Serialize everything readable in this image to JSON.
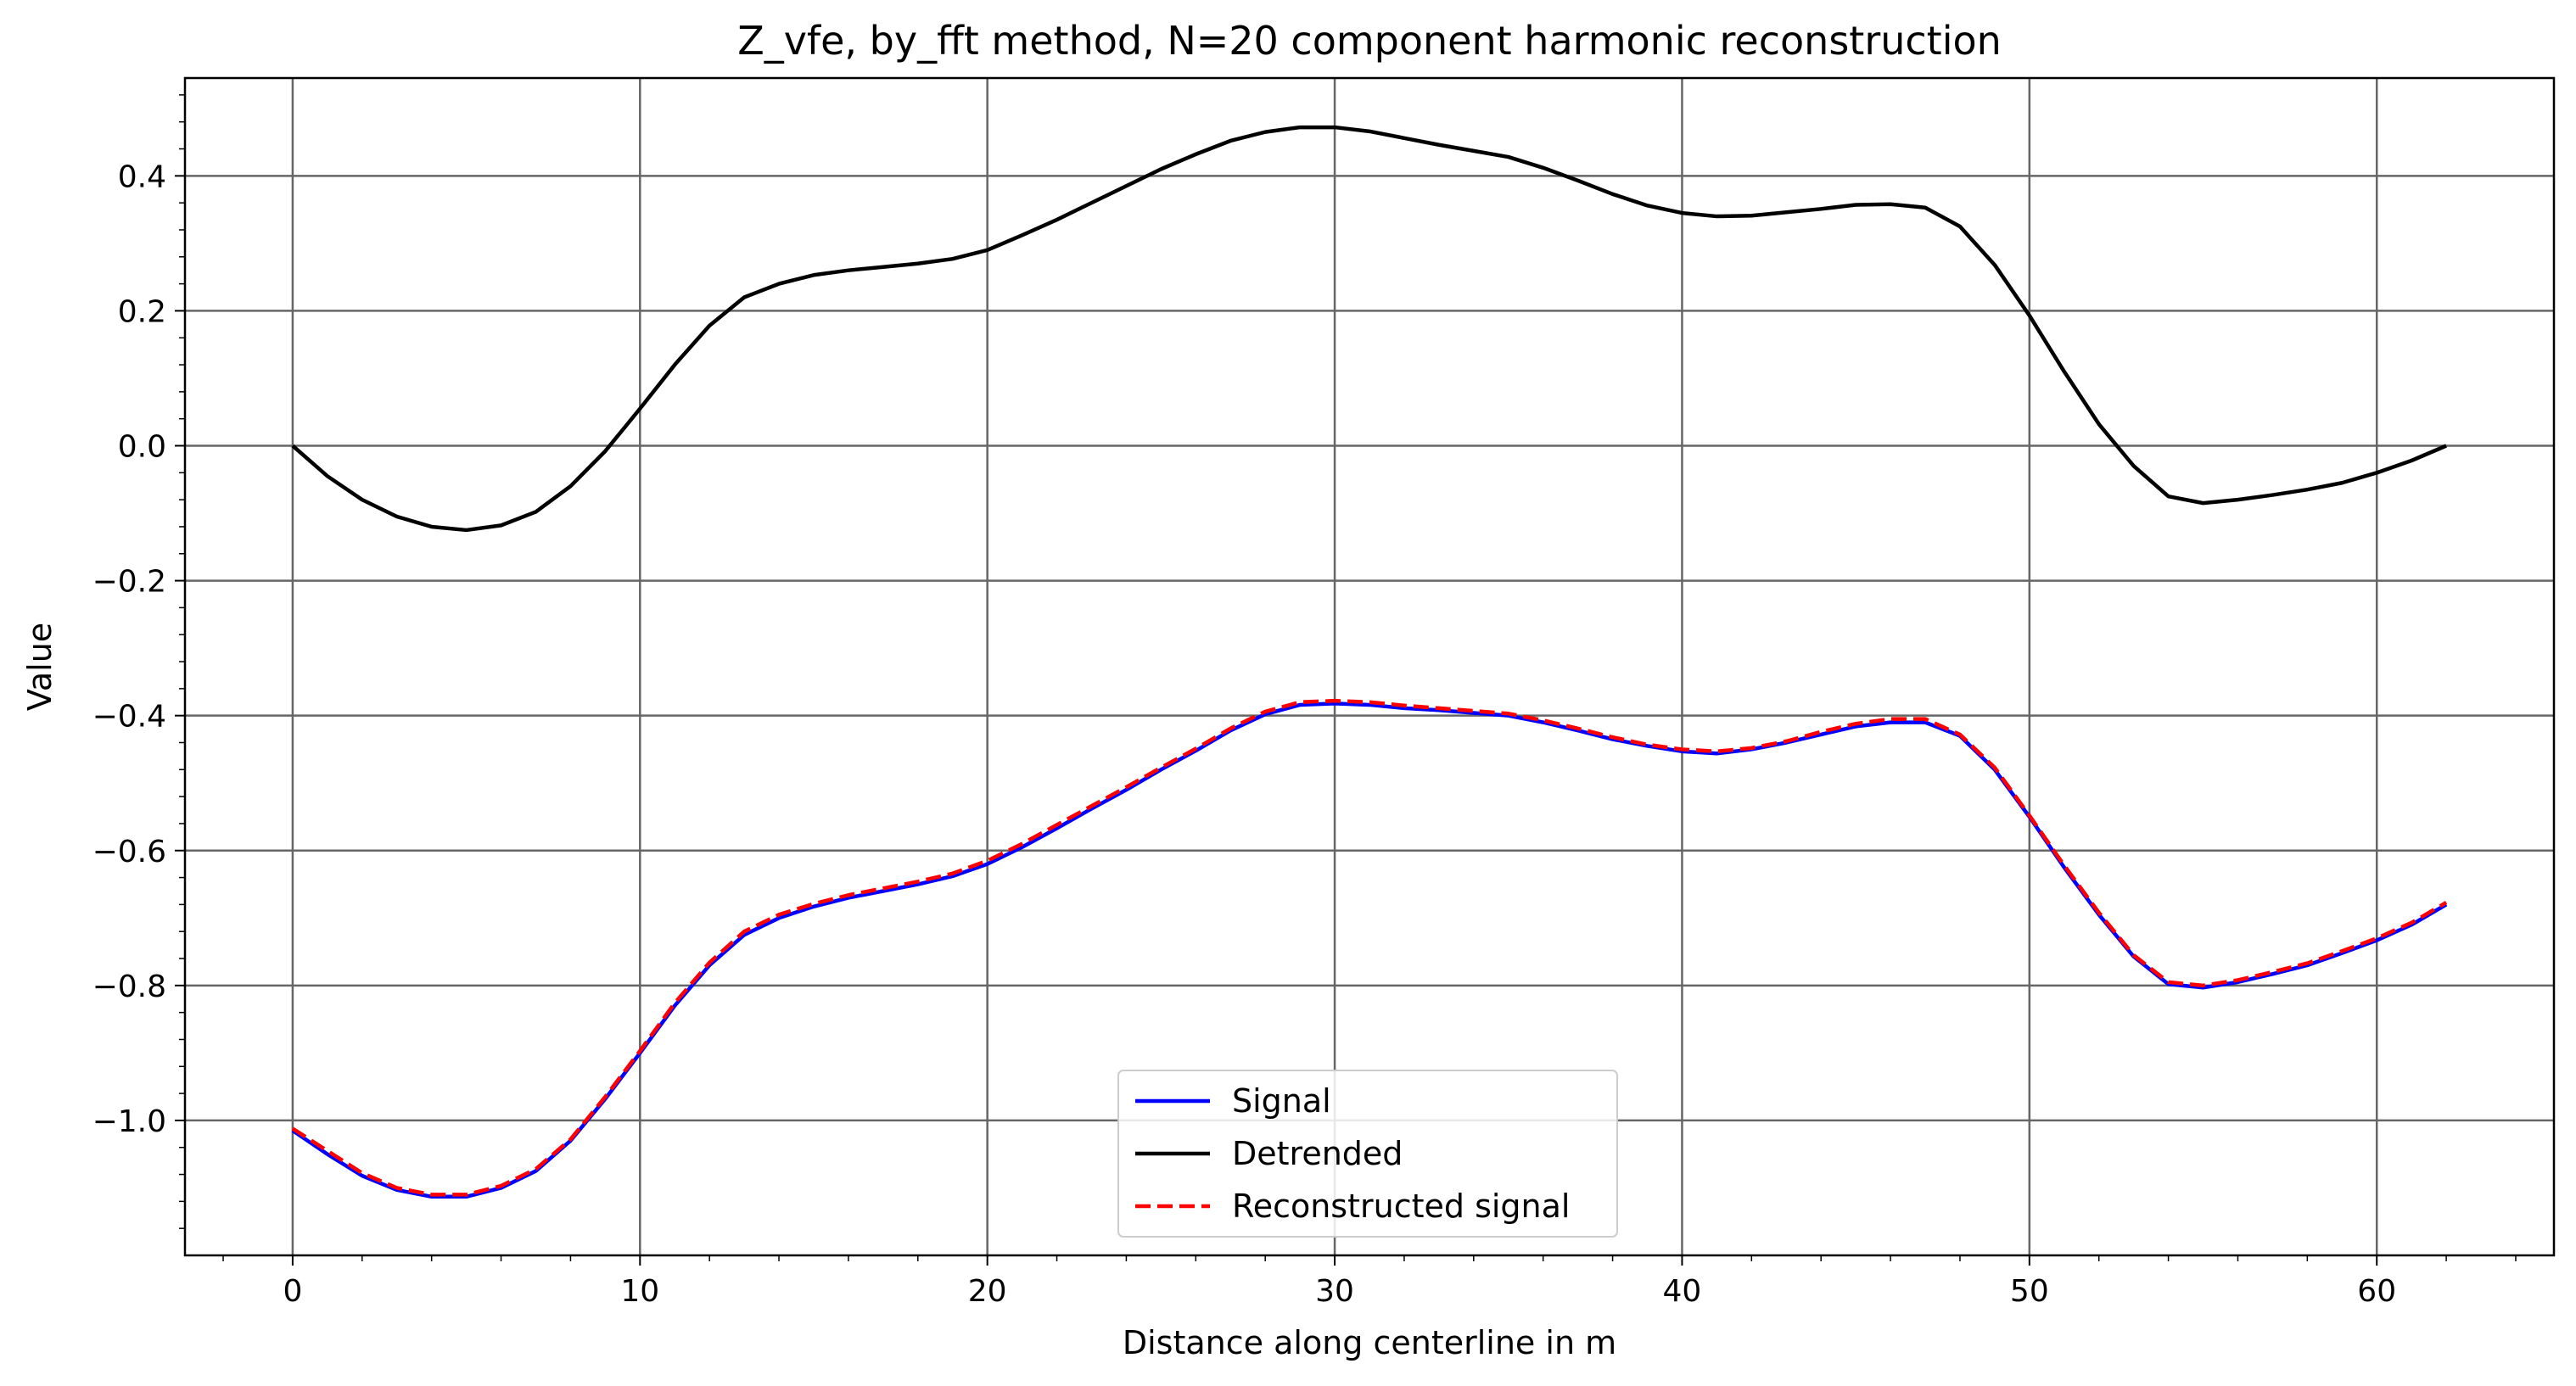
{
  "chart_data": {
    "type": "line",
    "title": "Z_vfe, by_fft method, N=20 component harmonic reconstruction",
    "xlabel": "Distance along centerline in m",
    "ylabel": "Value",
    "xlim": [
      -3.1,
      65.1
    ],
    "ylim": [
      -1.2,
      0.545
    ],
    "xticks": [
      0,
      10,
      20,
      30,
      40,
      50,
      60
    ],
    "xtick_labels": [
      "0",
      "10",
      "20",
      "30",
      "40",
      "50",
      "60"
    ],
    "yticks": [
      0.4,
      0.2,
      0.0,
      -0.2,
      -0.4,
      -0.6,
      -0.8,
      -1.0
    ],
    "ytick_labels": [
      "0.4",
      "0.2",
      "0.0",
      "−0.2",
      "−0.4",
      "−0.6",
      "−0.8",
      "−1.0"
    ],
    "grid": true,
    "legend_position": "lower-center",
    "x": [
      0,
      1,
      2,
      3,
      4,
      5,
      6,
      7,
      8,
      9,
      10,
      11,
      12,
      13,
      14,
      15,
      16,
      17,
      18,
      19,
      20,
      21,
      22,
      23,
      24,
      25,
      26,
      27,
      28,
      29,
      30,
      31,
      32,
      33,
      34,
      35,
      36,
      37,
      38,
      39,
      40,
      41,
      42,
      43,
      44,
      45,
      46,
      47,
      48,
      49,
      50,
      51,
      52,
      53,
      54,
      55,
      56,
      57,
      58,
      59,
      60,
      61,
      62
    ],
    "series": [
      {
        "name": "Signal",
        "color": "#0000ff",
        "style": "solid",
        "values": [
          -1.015,
          -1.05,
          -1.082,
          -1.103,
          -1.113,
          -1.113,
          -1.1,
          -1.075,
          -1.03,
          -0.968,
          -0.9,
          -0.83,
          -0.77,
          -0.725,
          -0.7,
          -0.683,
          -0.67,
          -0.66,
          -0.65,
          -0.638,
          -0.62,
          -0.595,
          -0.567,
          -0.538,
          -0.51,
          -0.48,
          -0.452,
          -0.422,
          -0.398,
          -0.384,
          -0.382,
          -0.384,
          -0.389,
          -0.392,
          -0.396,
          -0.4,
          -0.41,
          -0.422,
          -0.435,
          -0.445,
          -0.453,
          -0.456,
          -0.45,
          -0.44,
          -0.428,
          -0.416,
          -0.41,
          -0.41,
          -0.43,
          -0.48,
          -0.55,
          -0.625,
          -0.695,
          -0.757,
          -0.798,
          -0.803,
          -0.795,
          -0.783,
          -0.77,
          -0.752,
          -0.733,
          -0.71,
          -0.68
        ]
      },
      {
        "name": "Detrended",
        "color": "#000000",
        "style": "solid",
        "values": [
          0.0,
          -0.045,
          -0.08,
          -0.105,
          -0.12,
          -0.125,
          -0.118,
          -0.098,
          -0.06,
          -0.008,
          0.055,
          0.12,
          0.178,
          0.22,
          0.24,
          0.253,
          0.26,
          0.265,
          0.27,
          0.277,
          0.29,
          0.312,
          0.335,
          0.36,
          0.385,
          0.41,
          0.432,
          0.452,
          0.465,
          0.472,
          0.472,
          0.466,
          0.456,
          0.446,
          0.437,
          0.428,
          0.412,
          0.393,
          0.373,
          0.356,
          0.345,
          0.34,
          0.341,
          0.346,
          0.351,
          0.357,
          0.358,
          0.353,
          0.325,
          0.268,
          0.193,
          0.11,
          0.032,
          -0.03,
          -0.075,
          -0.085,
          -0.08,
          -0.073,
          -0.065,
          -0.055,
          -0.04,
          -0.022,
          0.0
        ]
      },
      {
        "name": "Reconstructed signal",
        "color": "#ff0000",
        "style": "dashed",
        "values": [
          -1.012,
          -1.045,
          -1.078,
          -1.1,
          -1.11,
          -1.11,
          -1.097,
          -1.072,
          -1.028,
          -0.965,
          -0.897,
          -0.826,
          -0.766,
          -0.72,
          -0.695,
          -0.679,
          -0.666,
          -0.656,
          -0.646,
          -0.634,
          -0.615,
          -0.59,
          -0.562,
          -0.534,
          -0.506,
          -0.477,
          -0.449,
          -0.419,
          -0.394,
          -0.38,
          -0.378,
          -0.38,
          -0.385,
          -0.389,
          -0.393,
          -0.397,
          -0.407,
          -0.419,
          -0.432,
          -0.443,
          -0.45,
          -0.453,
          -0.448,
          -0.438,
          -0.424,
          -0.412,
          -0.405,
          -0.405,
          -0.428,
          -0.477,
          -0.548,
          -0.622,
          -0.692,
          -0.755,
          -0.795,
          -0.8,
          -0.792,
          -0.78,
          -0.767,
          -0.749,
          -0.73,
          -0.707,
          -0.677
        ]
      }
    ]
  }
}
